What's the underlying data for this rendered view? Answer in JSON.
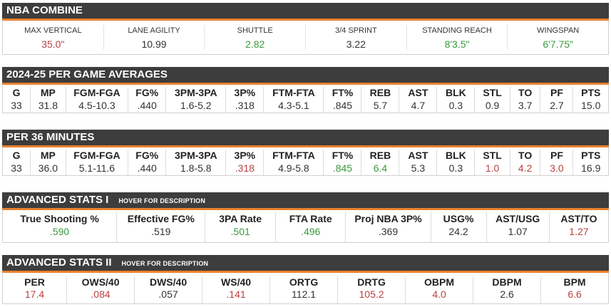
{
  "combine": {
    "title": "NBA COMBINE",
    "items": [
      {
        "label": "MAX VERTICAL",
        "value": "35.0\"",
        "tone": "r"
      },
      {
        "label": "LANE AGILITY",
        "value": "10.99",
        "tone": ""
      },
      {
        "label": "SHUTTLE",
        "value": "2.82",
        "tone": "g"
      },
      {
        "label": "3/4 SPRINT",
        "value": "3.22",
        "tone": ""
      },
      {
        "label": "STANDING REACH",
        "value": "8'3.5\"",
        "tone": "g"
      },
      {
        "label": "WINGSPAN",
        "value": "6'7.75\"",
        "tone": "g"
      }
    ]
  },
  "per_game": {
    "title": "2024-25 PER GAME AVERAGES",
    "items": [
      {
        "label": "G",
        "value": "33",
        "tone": ""
      },
      {
        "label": "MP",
        "value": "31.8",
        "tone": ""
      },
      {
        "label": "FGM-FGA",
        "value": "4.5-10.3",
        "tone": ""
      },
      {
        "label": "FG%",
        "value": ".440",
        "tone": ""
      },
      {
        "label": "3PM-3PA",
        "value": "1.6-5.2",
        "tone": ""
      },
      {
        "label": "3P%",
        "value": ".318",
        "tone": ""
      },
      {
        "label": "FTM-FTA",
        "value": "4.3-5.1",
        "tone": ""
      },
      {
        "label": "FT%",
        "value": ".845",
        "tone": ""
      },
      {
        "label": "REB",
        "value": "5.7",
        "tone": ""
      },
      {
        "label": "AST",
        "value": "4.7",
        "tone": ""
      },
      {
        "label": "BLK",
        "value": "0.3",
        "tone": ""
      },
      {
        "label": "STL",
        "value": "0.9",
        "tone": ""
      },
      {
        "label": "TO",
        "value": "3.7",
        "tone": ""
      },
      {
        "label": "PF",
        "value": "2.7",
        "tone": ""
      },
      {
        "label": "PTS",
        "value": "15.0",
        "tone": ""
      }
    ]
  },
  "per36": {
    "title": "PER 36 MINUTES",
    "items": [
      {
        "label": "G",
        "value": "33",
        "tone": ""
      },
      {
        "label": "MP",
        "value": "36.0",
        "tone": ""
      },
      {
        "label": "FGM-FGA",
        "value": "5.1-11.6",
        "tone": ""
      },
      {
        "label": "FG%",
        "value": ".440",
        "tone": ""
      },
      {
        "label": "3PM-3PA",
        "value": "1.8-5.8",
        "tone": ""
      },
      {
        "label": "3P%",
        "value": ".318",
        "tone": "r"
      },
      {
        "label": "FTM-FTA",
        "value": "4.9-5.8",
        "tone": ""
      },
      {
        "label": "FT%",
        "value": ".845",
        "tone": "g"
      },
      {
        "label": "REB",
        "value": "6.4",
        "tone": "g"
      },
      {
        "label": "AST",
        "value": "5.3",
        "tone": ""
      },
      {
        "label": "BLK",
        "value": "0.3",
        "tone": ""
      },
      {
        "label": "STL",
        "value": "1.0",
        "tone": "r"
      },
      {
        "label": "TO",
        "value": "4.2",
        "tone": "r"
      },
      {
        "label": "PF",
        "value": "3.0",
        "tone": "r"
      },
      {
        "label": "PTS",
        "value": "16.9",
        "tone": ""
      }
    ]
  },
  "adv1": {
    "title": "ADVANCED STATS I",
    "hover": "HOVER FOR DESCRIPTION",
    "items": [
      {
        "label": "True Shooting %",
        "value": ".590",
        "tone": "g"
      },
      {
        "label": "Effective FG%",
        "value": ".519",
        "tone": ""
      },
      {
        "label": "3PA Rate",
        "value": ".501",
        "tone": "g"
      },
      {
        "label": "FTA Rate",
        "value": ".496",
        "tone": "g"
      },
      {
        "label": "Proj NBA 3P%",
        "value": ".369",
        "tone": ""
      },
      {
        "label": "USG%",
        "value": "24.2",
        "tone": ""
      },
      {
        "label": "AST/USG",
        "value": "1.07",
        "tone": ""
      },
      {
        "label": "AST/TO",
        "value": "1.27",
        "tone": "r"
      }
    ]
  },
  "adv2": {
    "title": "ADVANCED STATS II",
    "hover": "HOVER FOR DESCRIPTION",
    "items": [
      {
        "label": "PER",
        "value": "17.4",
        "tone": "r"
      },
      {
        "label": "OWS/40",
        "value": ".084",
        "tone": "r"
      },
      {
        "label": "DWS/40",
        "value": ".057",
        "tone": ""
      },
      {
        "label": "WS/40",
        "value": ".141",
        "tone": "r"
      },
      {
        "label": "ORTG",
        "value": "112.1",
        "tone": ""
      },
      {
        "label": "DRTG",
        "value": "105.2",
        "tone": "r"
      },
      {
        "label": "OBPM",
        "value": "4.0",
        "tone": "r"
      },
      {
        "label": "DBPM",
        "value": "2.6",
        "tone": ""
      },
      {
        "label": "BPM",
        "value": "6.6",
        "tone": "r"
      }
    ]
  }
}
